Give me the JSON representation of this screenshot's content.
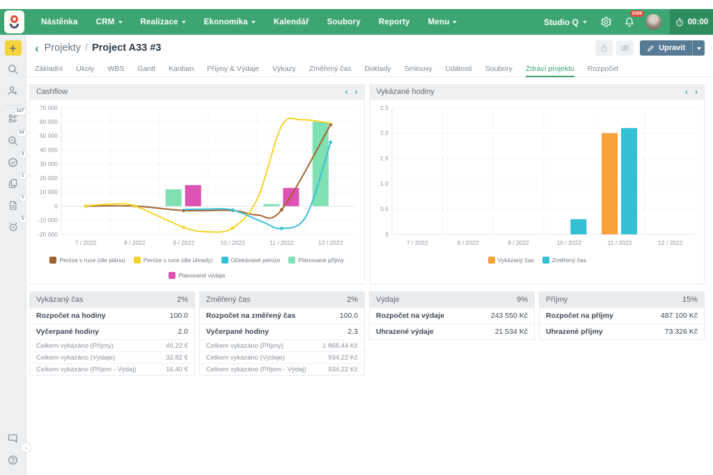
{
  "topbar": {
    "nav": [
      {
        "key": "nastenka",
        "label": "Nástěnka"
      },
      {
        "key": "crm",
        "label": "CRM",
        "dropdown": true
      },
      {
        "key": "realizace",
        "label": "Realizace",
        "dropdown": true
      },
      {
        "key": "ekonomika",
        "label": "Ekonomika",
        "dropdown": true
      },
      {
        "key": "kalendar",
        "label": "Kalendář"
      },
      {
        "key": "soubory",
        "label": "Soubory"
      },
      {
        "key": "reporty",
        "label": "Reporty"
      },
      {
        "key": "menu",
        "label": "Menu",
        "dropdown": true
      }
    ],
    "workspace": "Studio Q",
    "notifications_badge": "2588",
    "timer": "00:00"
  },
  "sidebar": {
    "items": [
      {
        "icon": "plus-icon",
        "style": "plus"
      },
      {
        "icon": "search-icon"
      },
      {
        "icon": "add-person-icon"
      },
      {
        "divider": true
      },
      {
        "icon": "tasks-list-icon",
        "badge": "127"
      },
      {
        "icon": "search-requests-icon",
        "badge": "10"
      },
      {
        "icon": "approvals-clock-icon",
        "badge": "3"
      },
      {
        "icon": "documents-icon",
        "badge": "1"
      },
      {
        "icon": "document-note-icon",
        "badge": "1"
      },
      {
        "icon": "alarm-icon",
        "badge": "2"
      }
    ],
    "footer": [
      {
        "icon": "chat-icon"
      },
      {
        "icon": "help-icon"
      }
    ]
  },
  "header": {
    "section": "Projekty",
    "separator": "/",
    "title": "Project A33 #3",
    "edit_label": "Upravit"
  },
  "tabs": {
    "active": "Zdraví projektu",
    "items": [
      {
        "key": "zakladni",
        "label": "Základní"
      },
      {
        "key": "ukoly",
        "label": "Úkoly"
      },
      {
        "key": "wbs",
        "label": "WBS"
      },
      {
        "key": "gantt",
        "label": "Gantt"
      },
      {
        "key": "kanban",
        "label": "Kanban"
      },
      {
        "key": "prijmy-vydaje",
        "label": "Příjmy & Výdaje"
      },
      {
        "key": "vykazy",
        "label": "Výkazy"
      },
      {
        "key": "zmereny-cas",
        "label": "Změřený čas"
      },
      {
        "key": "doklady",
        "label": "Doklady"
      },
      {
        "key": "smlouvy",
        "label": "Smlouvy"
      },
      {
        "key": "udalosti",
        "label": "Události"
      },
      {
        "key": "soubory",
        "label": "Soubory"
      },
      {
        "key": "zdravi-projektu",
        "label": "Zdraví projektu",
        "active": true
      },
      {
        "key": "rozpocet",
        "label": "Rozpočet"
      }
    ]
  },
  "chart_data": [
    {
      "type": "mixed-bar-line",
      "title": "Cashflow",
      "categories": [
        "7 / 2022",
        "8 / 2022",
        "9 / 2022",
        "10 / 2022",
        "11 / 2022",
        "12 / 2022"
      ],
      "ylim": [
        -20000,
        70000
      ],
      "yticks": [
        {
          "v": 70000,
          "label": "70 000"
        },
        {
          "v": 60000,
          "label": "60 000"
        },
        {
          "v": 50000,
          "label": "50 000"
        },
        {
          "v": 40000,
          "label": "40 000"
        },
        {
          "v": 30000,
          "label": "30 000"
        },
        {
          "v": 20000,
          "label": "20 000"
        },
        {
          "v": 10000,
          "label": "10 000"
        },
        {
          "v": 0,
          "label": "0"
        },
        {
          "v": -10000,
          "label": "-10 000"
        },
        {
          "v": -20000,
          "label": "-20 000"
        }
      ],
      "grid": true,
      "legend_position": "bottom",
      "bar_series": [
        {
          "name": "Plánované příjmy",
          "color": "#7fe0b2",
          "values": [
            null,
            null,
            12000,
            null,
            1500,
            60000
          ]
        },
        {
          "name": "Plánované výdaje",
          "color": "#de52b3",
          "values": [
            null,
            null,
            15000,
            null,
            13000,
            null
          ]
        }
      ],
      "line_series": [
        {
          "name": "Peníze v ruce (dle plánu)",
          "color": "#a2622d",
          "points": [
            [
              0,
              100
            ],
            [
              1,
              100
            ],
            [
              2,
              -3000
            ],
            [
              3,
              -3000
            ],
            [
              3.5,
              -6200
            ],
            [
              4,
              -2500
            ],
            [
              5,
              58000
            ]
          ],
          "markers": [
            [
              0,
              100
            ],
            [
              1,
              100
            ],
            [
              2,
              -3000
            ],
            [
              3,
              -3000
            ],
            [
              4,
              -2500
            ],
            [
              5,
              58000
            ]
          ]
        },
        {
          "name": "Peníze v ruce (dle úhrady)",
          "color": "#f5d327",
          "points": [
            [
              0,
              200
            ],
            [
              0.5,
              1500
            ],
            [
              1,
              200
            ],
            [
              2,
              -15000
            ],
            [
              2.5,
              -18200
            ],
            [
              3,
              -15500
            ],
            [
              3.5,
              5000
            ],
            [
              4,
              57000
            ],
            [
              4.4,
              61500
            ],
            [
              5,
              59000
            ]
          ],
          "markers": [
            [
              0,
              200
            ],
            [
              1,
              200
            ],
            [
              2,
              -15000
            ],
            [
              3,
              -15500
            ]
          ]
        },
        {
          "name": "Očekávané peníze",
          "color": "#35c0d8",
          "points": [
            [
              2,
              -2300
            ],
            [
              2.5,
              -2000
            ],
            [
              3,
              -2700
            ],
            [
              3.6,
              -11000
            ],
            [
              4,
              -15800
            ],
            [
              4.5,
              -7000
            ],
            [
              5,
              45500
            ]
          ],
          "markers": [
            [
              3,
              -2700
            ],
            [
              4,
              -15800
            ],
            [
              5,
              45500
            ]
          ]
        }
      ],
      "legend": [
        {
          "name": "Peníze v ruce (dle plánu)",
          "color": "#a2622d"
        },
        {
          "name": "Peníze v ruce (dle úhrady)",
          "color": "#f5d327"
        },
        {
          "name": "Očekávané peníze",
          "color": "#35c0d8"
        },
        {
          "name": "Plánované příjmy",
          "color": "#7fe0b2"
        },
        {
          "name": "Plánované výdaje",
          "color": "#de52b3"
        }
      ]
    },
    {
      "type": "bar",
      "title": "Vykázané hodiny",
      "categories": [
        "7 / 2022",
        "8 / 2022",
        "9 / 2022",
        "10 / 2022",
        "11 / 2022",
        "12 / 2022"
      ],
      "ylim": [
        0,
        2.5
      ],
      "yticks": [
        {
          "v": 2.5,
          "label": "2.5"
        },
        {
          "v": 2,
          "label": "2.0"
        },
        {
          "v": 1.5,
          "label": "1.5"
        },
        {
          "v": 1,
          "label": "1.0"
        },
        {
          "v": 0.5,
          "label": "0.5"
        },
        {
          "v": 0,
          "label": "0"
        }
      ],
      "grid": true,
      "legend_position": "bottom",
      "bar_series": [
        {
          "name": "Vykázaný čas",
          "color": "#f9a23c",
          "values": [
            null,
            null,
            null,
            null,
            2.0,
            null
          ]
        },
        {
          "name": "Změřený čas",
          "color": "#35bfd4",
          "values": [
            null,
            null,
            null,
            0.3,
            2.1,
            null
          ]
        }
      ],
      "line_series": [],
      "legend": [
        {
          "name": "Vykázaný čas",
          "color": "#f9a23c"
        },
        {
          "name": "Změřený čas",
          "color": "#35bfd4"
        }
      ]
    }
  ],
  "cards": [
    {
      "key": "vykazany-cas",
      "title": "Vykázaný čas",
      "percent": "2%",
      "rows": [
        {
          "label": "Rozpočet na hodiny",
          "value": "100.0",
          "bold": true
        },
        {
          "label": "Vyčerpané hodiny",
          "value": "2.0",
          "bold": true
        },
        {
          "label": "Celkem vykázáno (Příjmy)",
          "value": "49,22 €"
        },
        {
          "label": "Celkem vykázáno (Výdaje)",
          "value": "32,82 €"
        },
        {
          "label": "Celkem vykázáno (Příjem - Výdaj)",
          "value": "16,40 €"
        }
      ]
    },
    {
      "key": "zmereny-cas",
      "title": "Změřený čas",
      "percent": "2%",
      "rows": [
        {
          "label": "Rozpočet na změřený čas",
          "value": "100.0",
          "bold": true
        },
        {
          "label": "Vyčerpané hodiny",
          "value": "2.3",
          "bold": true
        },
        {
          "label": "Celkem vykázáno (Příjmy)",
          "value": "1 868,44 Kč"
        },
        {
          "label": "Celkem vykázáno (Výdaje)",
          "value": "934,22 Kč"
        },
        {
          "label": "Celkem vykázáno (Příjem - Výdaj)",
          "value": "934,22 Kč"
        }
      ]
    },
    {
      "key": "vydaje",
      "title": "Výdaje",
      "percent": "9%",
      "rows": [
        {
          "label": "Rozpočet na výdaje",
          "value": "243 550 Kč",
          "bold": true
        },
        {
          "label": "Uhrazené výdaje",
          "value": "21 534 Kč",
          "bold": true
        }
      ]
    },
    {
      "key": "prijmy",
      "title": "Příjmy",
      "percent": "15%",
      "rows": [
        {
          "label": "Rozpočet na příjmy",
          "value": "487 100 Kč",
          "bold": true
        },
        {
          "label": "Uhrazené příjmy",
          "value": "73 326 Kč",
          "bold": true
        }
      ]
    }
  ],
  "colors": {
    "topbar_green": "#3ca571",
    "timer_green": "#2e8c5d",
    "accent_green": "#3aa26e",
    "edit_button": "#587b95",
    "plus_yellow": "#f6d33e",
    "badge_red": "#e8453c"
  }
}
